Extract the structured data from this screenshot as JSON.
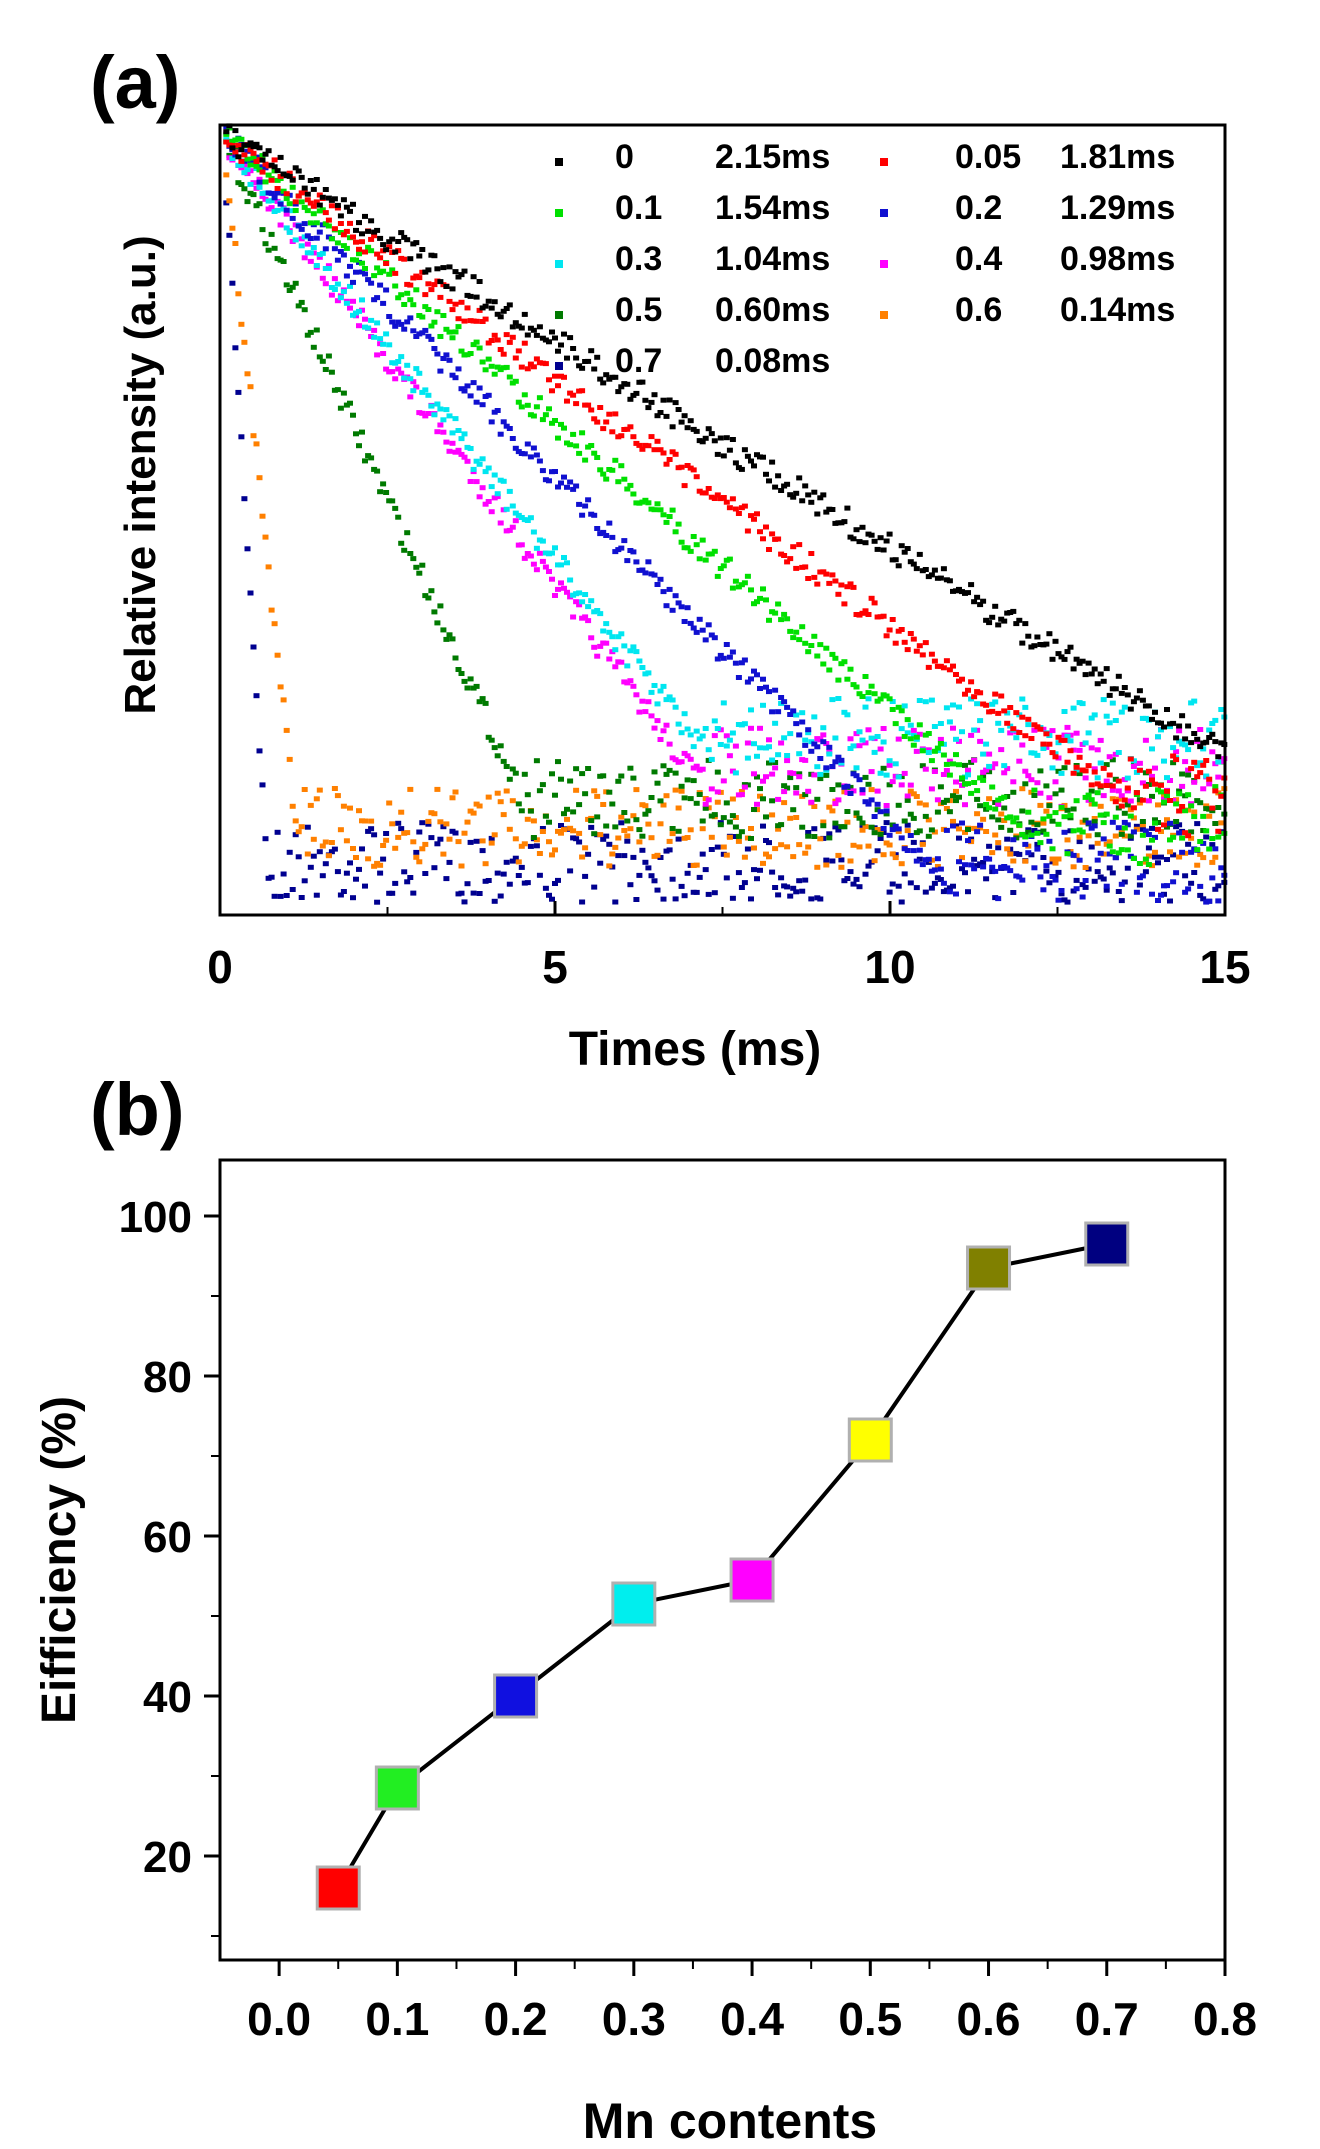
{
  "chart_data": [
    {
      "panel_label": "(a)",
      "type": "scatter",
      "title": "",
      "xlabel": "Times (ms)",
      "ylabel": "Relative intensity (a.u.)",
      "xlim": [
        0,
        15
      ],
      "xticks": [
        "0",
        "5",
        "10",
        "15"
      ],
      "y_scale": "log",
      "y_ticklabels_shown": false,
      "legend_location": "top-right",
      "series": [
        {
          "name": "0",
          "lifetime": "2.15ms",
          "tau_ms": 2.15,
          "color": "#000000"
        },
        {
          "name": "0.05",
          "lifetime": "1.81ms",
          "tau_ms": 1.81,
          "color": "#ff0000"
        },
        {
          "name": "0.1",
          "lifetime": "1.54ms",
          "tau_ms": 1.54,
          "color": "#00e000"
        },
        {
          "name": "0.2",
          "lifetime": "1.29ms",
          "tau_ms": 1.29,
          "color": "#1010d0"
        },
        {
          "name": "0.3",
          "lifetime": "1.04ms",
          "tau_ms": 1.04,
          "color": "#00e6f0"
        },
        {
          "name": "0.4",
          "lifetime": "0.98ms",
          "tau_ms": 0.98,
          "color": "#ff00ff"
        },
        {
          "name": "0.5",
          "lifetime": "0.60ms",
          "tau_ms": 0.6,
          "color": "#007a00"
        },
        {
          "name": "0.6",
          "lifetime": "0.14ms",
          "tau_ms": 0.14,
          "color": "#ff8000"
        },
        {
          "name": "0.7",
          "lifetime": "0.08ms",
          "tau_ms": 0.08,
          "color": "#000090"
        }
      ]
    },
    {
      "panel_label": "(b)",
      "type": "line",
      "title": "",
      "xlabel": "Mn contents",
      "ylabel": "Eifficiency (%)",
      "xlim": [
        -0.05,
        0.8
      ],
      "ylim": [
        7,
        107
      ],
      "xticks": [
        "0.0",
        "0.1",
        "0.2",
        "0.3",
        "0.4",
        "0.5",
        "0.6",
        "0.7",
        "0.8"
      ],
      "yticks": [
        "20",
        "40",
        "60",
        "80",
        "100"
      ],
      "x": [
        0.05,
        0.1,
        0.2,
        0.3,
        0.4,
        0.5,
        0.6,
        0.7
      ],
      "y": [
        16,
        28.5,
        40,
        51.5,
        54.5,
        72,
        93.5,
        96.5
      ],
      "marker_colors": [
        "#ff0000",
        "#22ee22",
        "#1010e0",
        "#00eeee",
        "#ff00ff",
        "#ffff00",
        "#808000",
        "#000080"
      ]
    }
  ]
}
